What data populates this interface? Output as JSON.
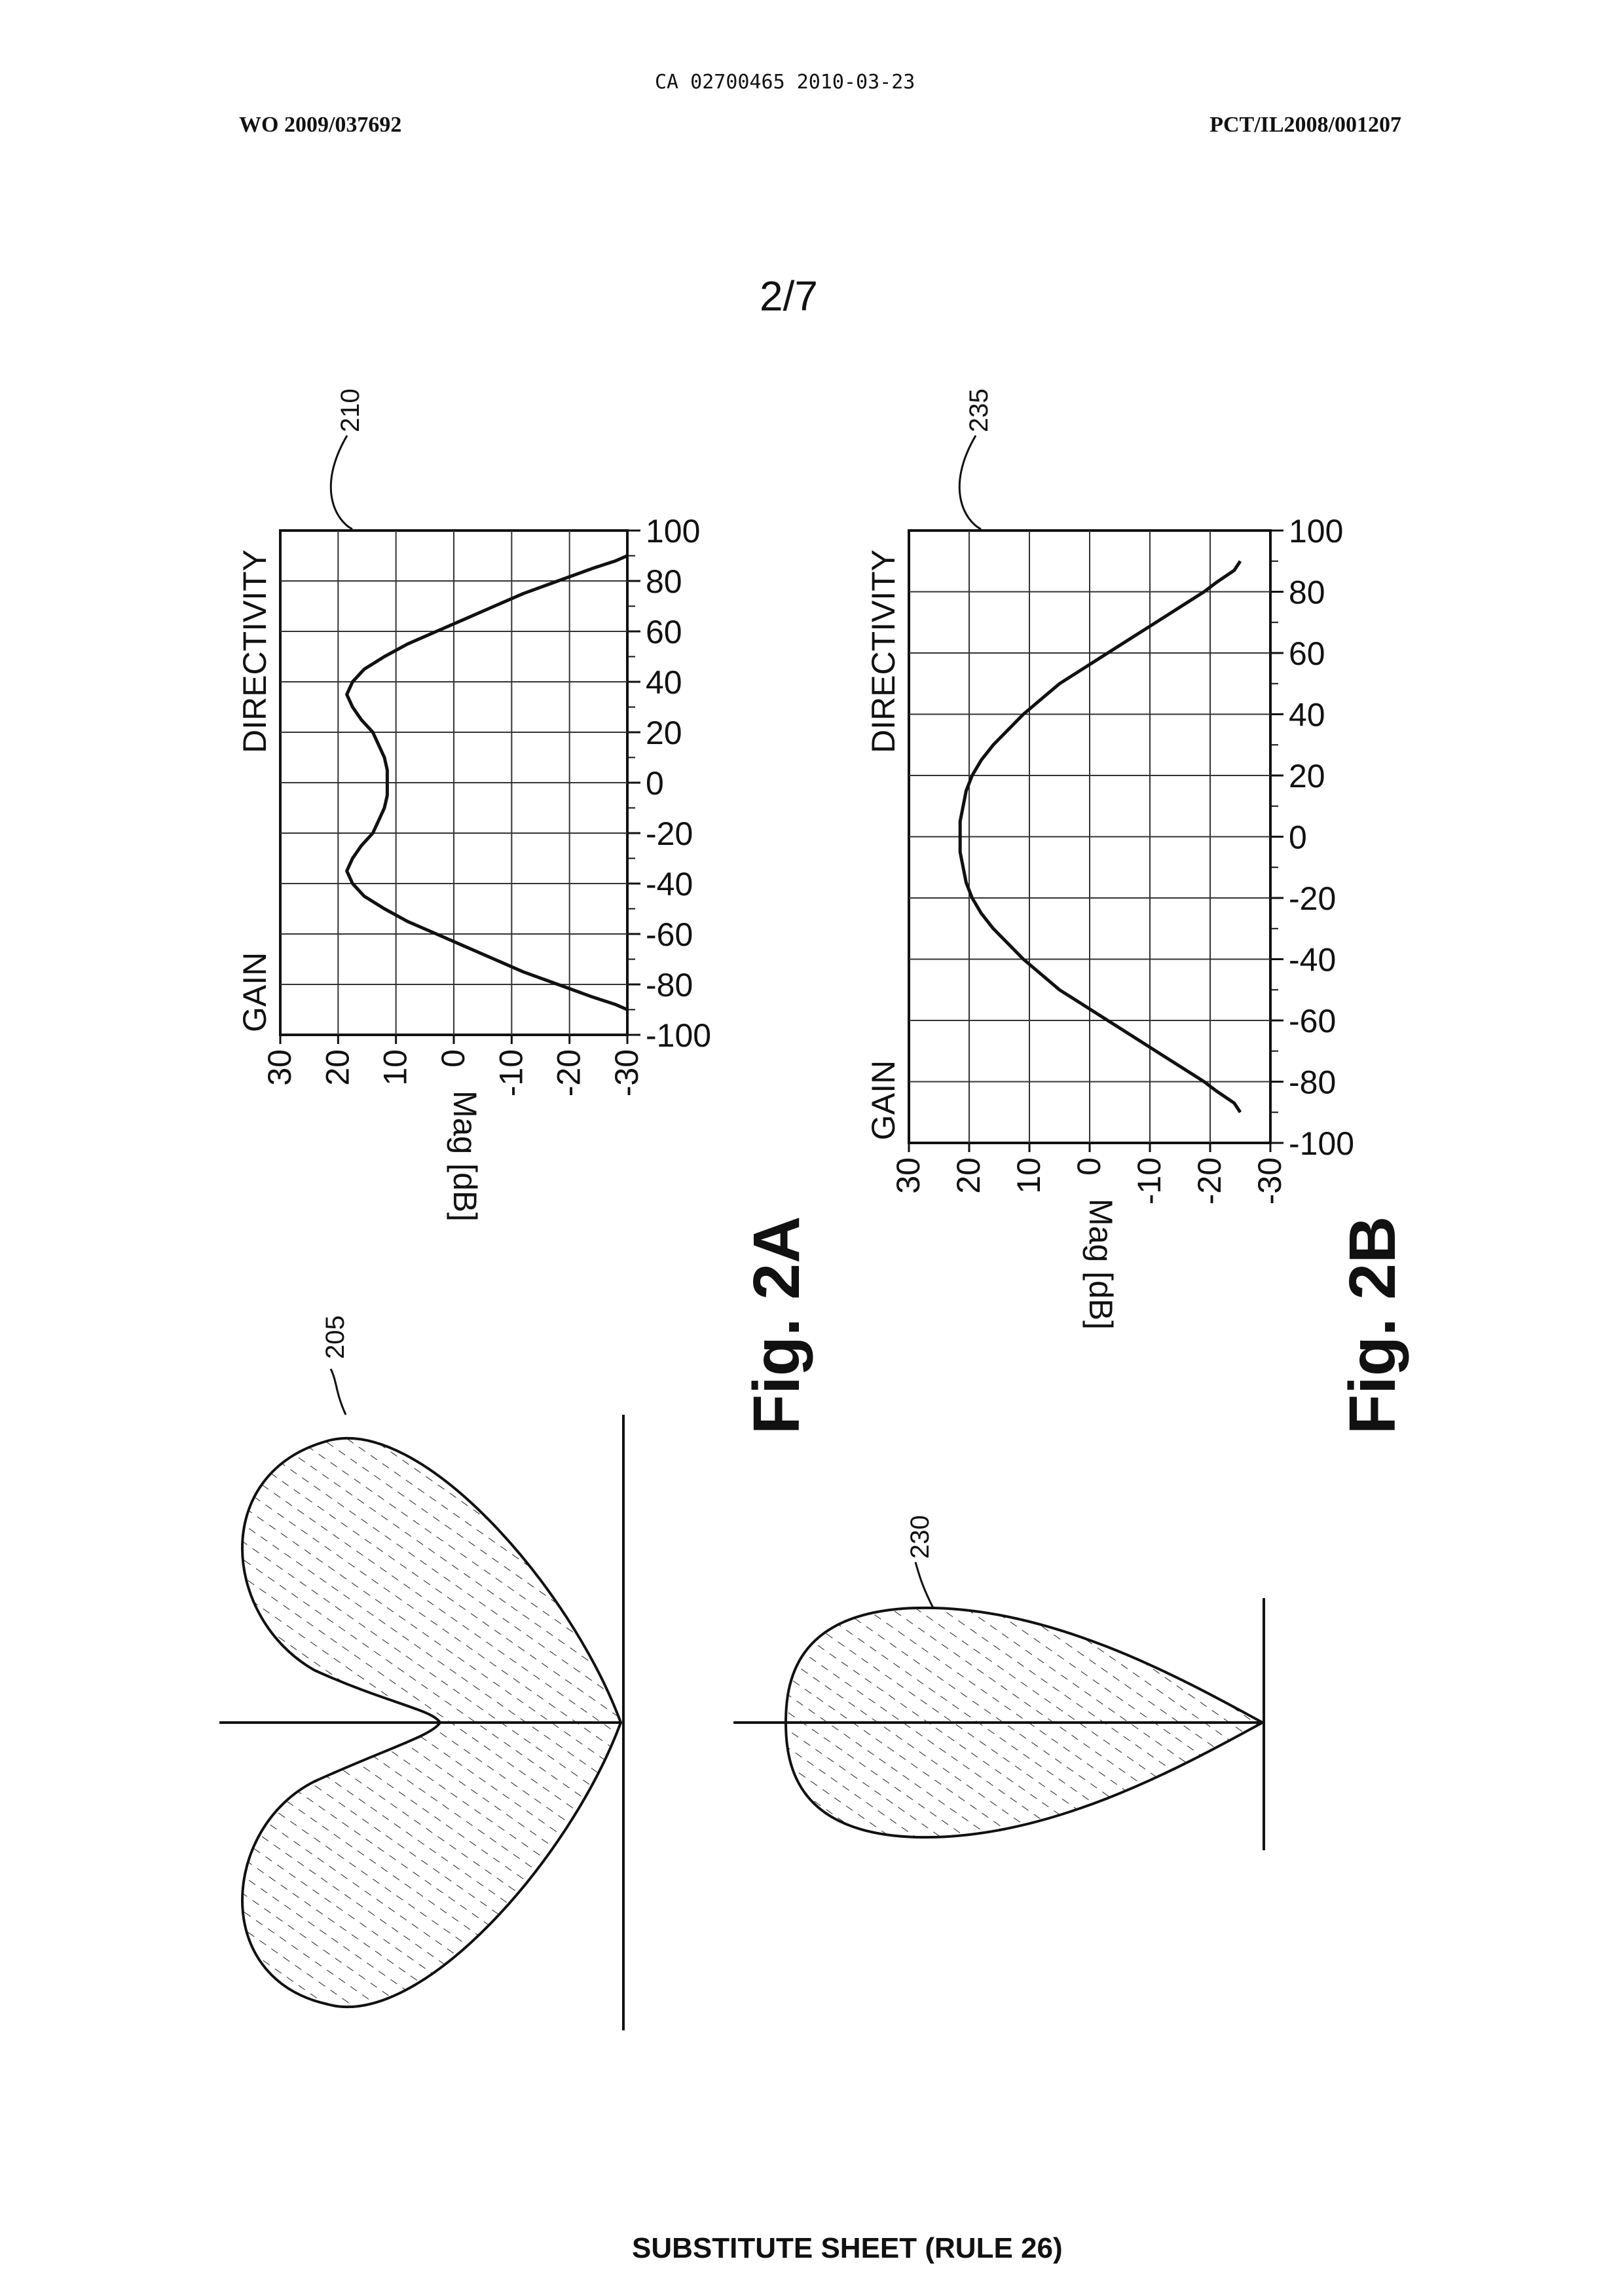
{
  "header": {
    "office_stamp": "CA 02700465 2010-03-23",
    "publication_number": "WO 2009/037692",
    "application_number": "PCT/IL2008/001207"
  },
  "page": {
    "sheet_number": "2/7"
  },
  "footer": {
    "text": "SUBSTITUTE SHEET (RULE 26)"
  },
  "figures": {
    "fig_2a": {
      "caption": "Fig. 2A",
      "pattern_ref": "205",
      "chart_ref": "210"
    },
    "fig_2b": {
      "caption": "Fig. 2B",
      "pattern_ref": "230",
      "chart_ref": "235"
    }
  },
  "chart_data": [
    {
      "id": "fig_2a_chart",
      "ref": "210",
      "type": "line",
      "orientation": "page rotated 90 degrees counter-clockwise",
      "title": "",
      "xlabel": "",
      "ylabel": "Mag [dB]",
      "side_labels": {
        "gain": "GAIN",
        "directivity": "DIRECTIVITY"
      },
      "xlim": [
        -100,
        100
      ],
      "ylim": [
        -30,
        30
      ],
      "x_ticks": [
        "-100",
        "-80",
        "-60",
        "-40",
        "-20",
        "0",
        "20",
        "40",
        "60",
        "80",
        "100"
      ],
      "y_ticks": [
        "30",
        "20",
        "10",
        "0",
        "-10",
        "-20",
        "-30"
      ],
      "grid": true,
      "series": [
        {
          "x": [
            -90,
            -88,
            -85,
            -80,
            -75,
            -70,
            -65,
            -60,
            -55,
            -50,
            -45,
            -40,
            -35,
            -30,
            -25,
            -20,
            -15,
            -10,
            -5,
            0,
            5,
            10,
            15,
            20,
            25,
            30,
            35,
            40,
            45,
            50,
            55,
            60,
            65,
            70,
            75,
            80,
            85,
            88,
            90
          ],
          "y": [
            -30,
            -28,
            -24,
            -18,
            -12,
            -7,
            -2,
            3,
            8,
            12,
            15.5,
            17.5,
            18.5,
            17.5,
            16,
            14,
            13,
            12,
            11.5,
            11.5,
            11.5,
            12,
            13,
            14,
            16,
            17.5,
            18.5,
            17.5,
            15.5,
            12,
            8,
            3,
            -2,
            -7,
            -12,
            -18,
            -24,
            -28,
            -30
          ]
        }
      ]
    },
    {
      "id": "fig_2b_chart",
      "ref": "235",
      "type": "line",
      "orientation": "page rotated 90 degrees counter-clockwise",
      "title": "",
      "xlabel": "",
      "ylabel": "Mag [dB]",
      "side_labels": {
        "gain": "GAIN",
        "directivity": "DIRECTIVITY"
      },
      "xlim": [
        -100,
        100
      ],
      "ylim": [
        -30,
        30
      ],
      "x_ticks": [
        "-100",
        "-80",
        "-60",
        "-40",
        "-20",
        "0",
        "20",
        "40",
        "60",
        "80",
        "100"
      ],
      "y_ticks": [
        "30",
        "20",
        "10",
        "0",
        "-10",
        "-20",
        "-30"
      ],
      "grid": true,
      "series": [
        {
          "x": [
            -90,
            -87,
            -83,
            -80,
            -75,
            -70,
            -65,
            -60,
            -55,
            -50,
            -45,
            -40,
            -35,
            -30,
            -25,
            -20,
            -15,
            -10,
            -5,
            0,
            5,
            10,
            15,
            20,
            25,
            30,
            35,
            40,
            45,
            50,
            55,
            60,
            65,
            70,
            75,
            80,
            83,
            87,
            90
          ],
          "y": [
            -25,
            -24,
            -21,
            -19,
            -15,
            -11,
            -7,
            -3,
            1,
            5,
            8,
            11,
            13.5,
            16,
            18,
            19.5,
            20.5,
            21,
            21.5,
            21.5,
            21.5,
            21,
            20.5,
            19.5,
            18,
            16,
            13.5,
            11,
            8,
            5,
            1,
            -3,
            -7,
            -11,
            -15,
            -19,
            -21,
            -24,
            -25
          ]
        }
      ]
    }
  ]
}
